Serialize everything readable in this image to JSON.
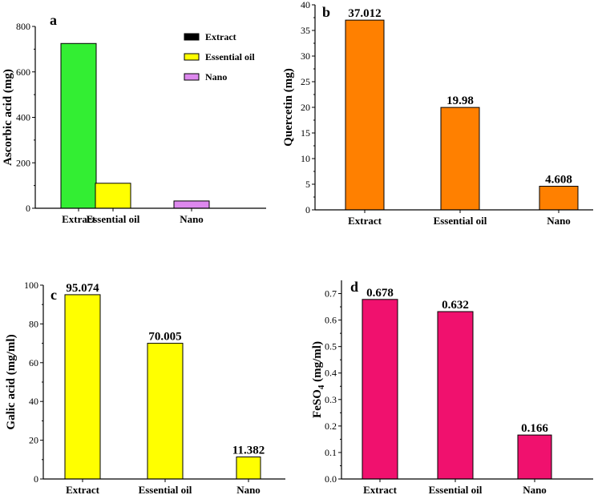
{
  "chart_data": [
    {
      "panel": "a",
      "type": "bar",
      "categories": [
        "Extract",
        "Essential oil",
        "Nano"
      ],
      "values": [
        725,
        110,
        32
      ],
      "colors": [
        "#33ee33",
        "#ffff00",
        "#dd88ee"
      ],
      "ylabel": "Ascorbic acid (mg)",
      "ylabel_sub": "",
      "ylabel_tail": "",
      "ylim": [
        0,
        800
      ],
      "yticks": [
        0,
        200,
        400,
        600,
        800
      ],
      "ytick_labels": [
        "0",
        "200",
        "400",
        "600",
        "800"
      ],
      "data_labels": [],
      "legend": [
        {
          "label": "Extract",
          "color": "#000000"
        },
        {
          "label": "Essential oil",
          "color": "#ffff00"
        },
        {
          "label": "Nano",
          "color": "#dd88ee"
        }
      ]
    },
    {
      "panel": "b",
      "type": "bar",
      "categories": [
        "Extract",
        "Essential oil",
        "Nano"
      ],
      "values": [
        37.012,
        19.98,
        4.608
      ],
      "colors": [
        "#ff8000",
        "#ff8000",
        "#ff8000"
      ],
      "ylabel": "Quercetin (mg)",
      "ylabel_sub": "",
      "ylabel_tail": "",
      "ylim": [
        0,
        40
      ],
      "yticks": [
        0,
        5,
        10,
        15,
        20,
        25,
        30,
        35,
        40
      ],
      "ytick_labels": [
        "0",
        "5",
        "10",
        "15",
        "20",
        "25",
        "30",
        "35",
        "40"
      ],
      "data_labels": [
        "37.012",
        "19.98",
        "4.608"
      ],
      "legend": []
    },
    {
      "panel": "c",
      "type": "bar",
      "categories": [
        "Extract",
        "Essential oil",
        "Nano"
      ],
      "values": [
        95.074,
        70.005,
        11.382
      ],
      "colors": [
        "#ffff00",
        "#ffff00",
        "#ffff00"
      ],
      "ylabel": "Galic acid (mg/ml)",
      "ylabel_sub": "",
      "ylabel_tail": "",
      "ylim": [
        0,
        100
      ],
      "yticks": [
        0,
        20,
        40,
        60,
        80,
        100
      ],
      "ytick_labels": [
        "0",
        "20",
        "40",
        "60",
        "80",
        "100"
      ],
      "data_labels": [
        "95.074",
        "70.005",
        "11.382"
      ],
      "legend": []
    },
    {
      "panel": "d",
      "type": "bar",
      "categories": [
        "Extract",
        "Essential oil",
        "Nano"
      ],
      "values": [
        0.678,
        0.632,
        0.166
      ],
      "colors": [
        "#f0116e",
        "#f0116e",
        "#f0116e"
      ],
      "ylabel": "FeSO",
      "ylabel_sub": "4",
      "ylabel_tail": " (mg/ml)",
      "ylim": [
        0,
        0.75
      ],
      "yticks": [
        0,
        0.1,
        0.2,
        0.3,
        0.4,
        0.5,
        0.6,
        0.7
      ],
      "ytick_labels": [
        "0.0",
        "0.1",
        "0.2",
        "0.3",
        "0.4",
        "0.5",
        "0.6",
        "0.7"
      ],
      "data_labels": [
        "0.678",
        "0.632",
        "0.166"
      ],
      "legend": []
    }
  ]
}
